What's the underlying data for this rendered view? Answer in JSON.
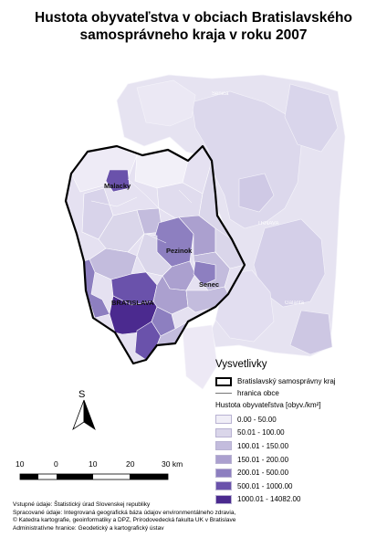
{
  "title_line1": "Hustota obyvateľstva v obciach Bratislavského",
  "title_line2": "samosprávneho kraja v roku 2007",
  "towns": {
    "malacky": "Malacky",
    "pezinok": "Pezinok",
    "senec": "Senec",
    "bratislava": "BRATISLAVA",
    "senica": "Senica",
    "trnava": "TRNAVA",
    "galanta": "Galanta"
  },
  "legend": {
    "title": "Vysvetlivky",
    "region_boundary": "Bratislavský samosprávny kraj",
    "municipal_boundary": "hranica obce",
    "density_title": "Hustota obyvateľstva [obyv./km²]",
    "classes": [
      {
        "label": "0.00 - 50.00",
        "color": "#f0eef7"
      },
      {
        "label": "50.01 - 100.00",
        "color": "#dad6ea"
      },
      {
        "label": "100.01 - 150.00",
        "color": "#c3bcdd"
      },
      {
        "label": "150.01 - 200.00",
        "color": "#aba0cf"
      },
      {
        "label": "200.01 - 500.00",
        "color": "#8d7fc0"
      },
      {
        "label": "500.01 - 1000.00",
        "color": "#6a52ab"
      },
      {
        "label": "1000.01 - 14082.00",
        "color": "#4b2a8f"
      }
    ]
  },
  "north_label": "S",
  "scale": {
    "labels": [
      "10",
      "0",
      "10",
      "20",
      "30 km"
    ]
  },
  "credits": [
    "Vstupné údaje: Štatistický úrad Slovenskej republiky",
    "Spracované údaje: Integrovaná geografická báza údajov environmentálneho zdravia,",
    "© Katedra kartografie, geoinformatiky a DPZ, Prírodovedecká fakulta UK v Bratislave",
    "Administratívne hranice: Geodetický a kartografický ústav"
  ]
}
